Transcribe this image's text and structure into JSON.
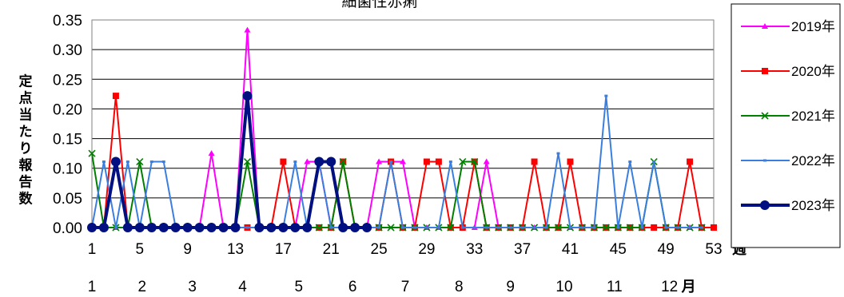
{
  "chart_data": {
    "type": "line",
    "title": "細菌性赤痢",
    "ylabel": "定点当たり報告数",
    "x_unit": "週",
    "month_unit": "月",
    "ylim": [
      0,
      0.35
    ],
    "yticks": [
      "0.00",
      "0.05",
      "0.10",
      "0.15",
      "0.20",
      "0.25",
      "0.30",
      "0.35"
    ],
    "xlim": [
      1,
      53
    ],
    "xticks": [
      "1",
      "5",
      "9",
      "13",
      "17",
      "21",
      "25",
      "29",
      "33",
      "37",
      "41",
      "45",
      "49",
      "53"
    ],
    "month_labels": [
      "1",
      "2",
      "3",
      "4",
      "5",
      "6",
      "7",
      "8",
      "9",
      "10",
      "11",
      "12"
    ],
    "month_positions": [
      1,
      5.2,
      9.4,
      13.6,
      18.3,
      22.8,
      27.2,
      31.7,
      36,
      40.5,
      44.7,
      49.3
    ],
    "grid": true,
    "legend_position": "right",
    "series": [
      {
        "name": "2019年",
        "color": "#ff00ff",
        "marker": "triangle",
        "values": [
          0,
          0,
          0,
          0,
          0,
          0,
          0,
          0,
          0,
          0,
          0.125,
          0,
          0,
          0.333,
          0,
          0,
          0,
          0,
          0.111,
          0.111,
          0,
          0,
          0,
          0,
          0.111,
          0.111,
          0.111,
          0,
          0,
          0,
          0,
          0,
          0,
          0.111,
          0,
          0,
          0,
          0,
          0,
          0,
          0,
          0,
          0,
          0,
          0,
          0,
          0,
          0,
          0,
          0,
          0,
          0
        ]
      },
      {
        "name": "2020年",
        "color": "#ff0000",
        "marker": "square",
        "values": [
          0,
          0,
          0.222,
          0,
          0,
          0,
          0,
          0,
          0,
          0,
          0,
          0,
          0,
          0,
          0,
          0,
          0.111,
          0,
          0,
          0,
          0,
          0.111,
          0,
          0,
          0,
          0.111,
          0,
          0,
          0.111,
          0.111,
          0,
          0,
          0.111,
          0,
          0,
          0,
          0,
          0.111,
          0,
          0,
          0.111,
          0,
          0,
          0,
          0,
          0,
          0,
          0,
          0,
          0,
          0.111,
          0,
          0
        ]
      },
      {
        "name": "2021年",
        "color": "#008000",
        "marker": "x",
        "values": [
          0.125,
          0,
          0,
          0,
          0.111,
          0,
          0,
          0,
          0,
          0,
          0,
          0,
          0,
          0.111,
          0,
          0,
          0,
          0,
          0,
          0,
          0,
          0.111,
          0,
          0,
          0,
          0,
          0,
          0,
          0,
          0,
          0,
          0.111,
          0.111,
          0,
          0,
          0,
          0,
          0,
          0,
          0,
          0,
          0,
          0,
          0,
          0,
          0,
          0,
          0.111,
          0,
          0,
          0,
          0
        ]
      },
      {
        "name": "2022年",
        "color": "#3a7fe0",
        "marker": "dash",
        "values": [
          0,
          0.111,
          0,
          0.111,
          0,
          0.111,
          0.111,
          0,
          0,
          0,
          0,
          0,
          0,
          0,
          0,
          0,
          0,
          0.111,
          0,
          0.111,
          0,
          0,
          0,
          0,
          0,
          0.111,
          0,
          0,
          0,
          0,
          0.111,
          0,
          0,
          0,
          0,
          0,
          0,
          0,
          0,
          0.125,
          0,
          0,
          0,
          0.222,
          0,
          0.111,
          0,
          0.111,
          0,
          0,
          0,
          0
        ]
      },
      {
        "name": "2023年",
        "color": "#001080",
        "marker": "circle",
        "values": [
          0,
          0,
          0.111,
          0,
          0,
          0,
          0,
          0,
          0,
          0,
          0,
          0,
          0,
          0.222,
          0,
          0,
          0,
          0,
          0,
          0.111,
          0.111,
          0,
          0,
          0
        ]
      }
    ]
  }
}
